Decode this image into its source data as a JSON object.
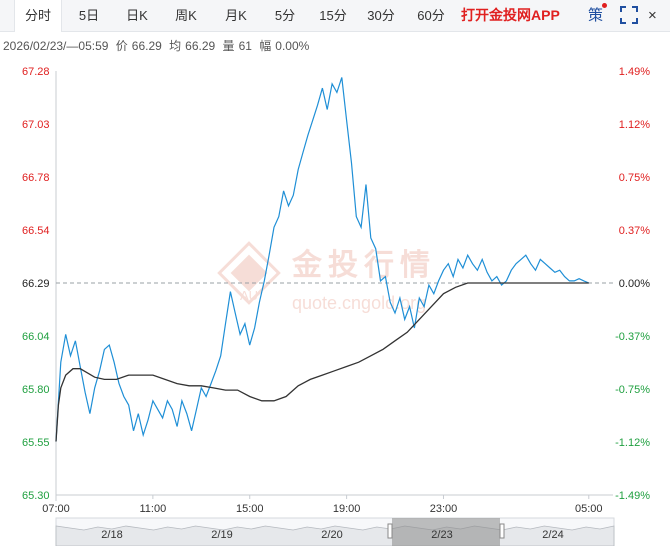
{
  "tabs": [
    "分时",
    "5日",
    "日K",
    "周K",
    "月K",
    "5分",
    "15分",
    "30分",
    "60分"
  ],
  "active_tab": "分时",
  "promo": "打开金投网APP",
  "strategy_label": "策",
  "close_label": "×",
  "info": {
    "datetime": "2026/02/23/—05:59",
    "price_label": "价",
    "price": "66.29",
    "avg_label": "均",
    "avg": "66.29",
    "vol_label": "量",
    "vol": "61",
    "range_label": "幅",
    "range": "0.00%"
  },
  "colors": {
    "price_line": "#1f8fd6",
    "avg_line": "#333333",
    "up": "#e02020",
    "down": "#20a040",
    "ref": "#222222",
    "navigator_fill": "#8a8a8a",
    "watermark": "#e8a090"
  },
  "watermark": {
    "cn": "金投行情",
    "en": "quote.cngold.org",
    "logo": "AU"
  },
  "nav_labels": [
    "2/18",
    "2/19",
    "2/20",
    "2/23",
    "2/24"
  ],
  "chart_data": {
    "type": "line",
    "title": "",
    "xlabel": "",
    "ylabel": "",
    "reference_price": 66.29,
    "ylim": [
      65.3,
      67.28
    ],
    "y_ticks_left": [
      "67.28",
      "67.03",
      "66.78",
      "66.54",
      "66.29",
      "66.04",
      "65.80",
      "65.55",
      "65.30"
    ],
    "y_ticks_right": [
      "1.49%",
      "1.12%",
      "0.75%",
      "0.37%",
      "0.00%",
      "-0.37%",
      "-0.75%",
      "-1.12%",
      "-1.49%"
    ],
    "x_ticks": [
      "07:00",
      "11:00",
      "15:00",
      "19:00",
      "23:00",
      "05:00"
    ],
    "x_tick_hours": [
      0,
      4,
      8,
      12,
      16,
      22
    ],
    "x_range_hours": [
      0,
      23
    ],
    "series": [
      {
        "x": [
          0,
          0.2,
          0.4,
          0.6,
          0.8,
          1.0,
          1.2,
          1.4,
          1.6,
          1.8,
          2.0,
          2.2,
          2.4,
          2.6,
          2.8,
          3.0,
          3.2,
          3.4,
          3.6,
          3.8,
          4.0,
          4.2,
          4.4,
          4.6,
          4.8,
          5.0,
          5.2,
          5.4,
          5.6,
          5.8,
          6.0,
          6.2,
          6.4,
          6.6,
          6.8,
          7.0,
          7.2,
          7.4,
          7.6,
          7.8,
          8.0,
          8.2,
          8.4,
          8.6,
          8.8,
          9.0,
          9.2,
          9.4,
          9.6,
          9.8,
          10.0,
          10.2,
          10.4,
          10.6,
          10.8,
          11.0,
          11.2,
          11.4,
          11.6,
          11.8,
          12.0,
          12.2,
          12.4,
          12.6,
          12.8,
          13.0,
          13.2,
          13.4,
          13.6,
          13.8,
          14.0,
          14.2,
          14.4,
          14.6,
          14.8,
          15.0,
          15.2,
          15.4,
          15.6,
          15.8,
          16.0,
          16.2,
          16.4,
          16.6,
          16.8,
          17.0,
          17.2,
          17.4,
          17.6,
          17.8,
          18.0,
          18.2,
          18.4,
          18.6,
          18.8,
          19.0,
          19.2,
          19.4,
          19.6,
          19.8,
          20.0,
          20.2,
          20.4,
          20.6,
          20.8,
          21.0,
          21.2,
          21.4,
          21.6,
          21.8,
          22.0
        ],
        "values": [
          65.55,
          65.92,
          66.05,
          65.95,
          66.02,
          65.9,
          65.78,
          65.68,
          65.8,
          65.88,
          65.98,
          66.0,
          65.92,
          65.82,
          65.76,
          65.72,
          65.6,
          65.68,
          65.58,
          65.65,
          65.74,
          65.7,
          65.66,
          65.74,
          65.7,
          65.62,
          65.74,
          65.68,
          65.6,
          65.7,
          65.8,
          65.76,
          65.82,
          65.88,
          65.95,
          66.1,
          66.25,
          66.15,
          66.05,
          66.1,
          66.0,
          66.08,
          66.2,
          66.3,
          66.42,
          66.55,
          66.6,
          66.72,
          66.65,
          66.7,
          66.82,
          66.9,
          66.98,
          67.05,
          67.12,
          67.2,
          67.1,
          67.22,
          67.18,
          67.25,
          67.05,
          66.85,
          66.6,
          66.55,
          66.75,
          66.5,
          66.45,
          66.3,
          66.32,
          66.2,
          66.15,
          66.22,
          66.12,
          66.18,
          66.08,
          66.22,
          66.18,
          66.28,
          66.24,
          66.3,
          66.35,
          66.38,
          66.32,
          66.4,
          66.36,
          66.42,
          66.38,
          66.35,
          66.4,
          66.34,
          66.3,
          66.32,
          66.28,
          66.3,
          66.35,
          66.38,
          66.4,
          66.42,
          66.38,
          66.35,
          66.4,
          66.38,
          66.36,
          66.34,
          66.35,
          66.32,
          66.3,
          66.3,
          66.31,
          66.3,
          66.29
        ]
      },
      {
        "x": [
          0,
          0.1,
          0.2,
          0.4,
          0.7,
          1.0,
          1.3,
          1.6,
          2.0,
          2.5,
          3.0,
          3.5,
          4.0,
          4.5,
          5.0,
          5.5,
          6.0,
          6.5,
          7.0,
          7.5,
          8.0,
          8.5,
          9.0,
          9.5,
          10.0,
          10.5,
          11.0,
          11.5,
          12.0,
          12.5,
          13.0,
          13.5,
          14.0,
          14.5,
          15.0,
          15.5,
          16.0,
          16.5,
          17.0,
          17.5,
          18.0,
          18.5,
          19.0,
          19.5,
          20.0,
          20.5,
          21.0,
          21.5,
          22.0
        ],
        "values": [
          65.55,
          65.72,
          65.8,
          65.86,
          65.89,
          65.89,
          65.87,
          65.85,
          65.84,
          65.84,
          65.86,
          65.86,
          65.86,
          65.84,
          65.82,
          65.81,
          65.81,
          65.8,
          65.79,
          65.79,
          65.76,
          65.74,
          65.74,
          65.76,
          65.81,
          65.84,
          65.86,
          65.88,
          65.9,
          65.92,
          65.95,
          65.98,
          66.02,
          66.06,
          66.12,
          66.18,
          66.24,
          66.27,
          66.29,
          66.29,
          66.29,
          66.29,
          66.29,
          66.29,
          66.29,
          66.29,
          66.29,
          66.29,
          66.29
        ]
      }
    ],
    "grid": false,
    "legend": "none"
  }
}
